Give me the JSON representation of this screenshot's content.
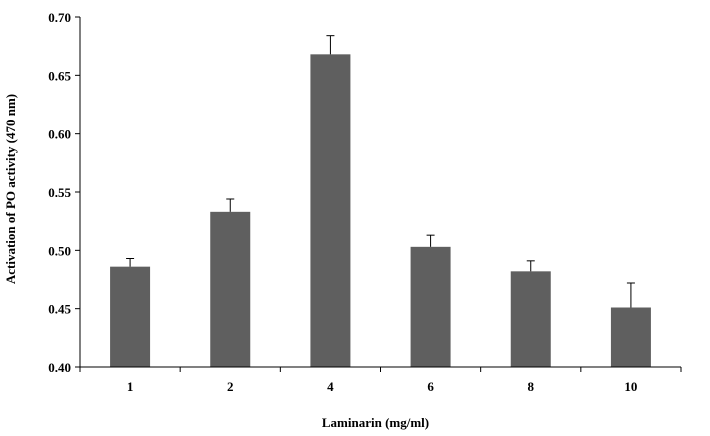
{
  "chart_data": {
    "type": "bar",
    "categories": [
      "1",
      "2",
      "4",
      "6",
      "8",
      "10"
    ],
    "values": [
      0.486,
      0.533,
      0.668,
      0.503,
      0.482,
      0.451
    ],
    "error_plus": [
      0.007,
      0.011,
      0.016,
      0.01,
      0.009,
      0.021
    ],
    "title": "",
    "xlabel": "Laminarin (mg/ml)",
    "ylabel": "Activation of PO activity (470 nm)",
    "ylim": [
      0.4,
      0.7
    ],
    "yticks": [
      "0.40",
      "0.45",
      "0.50",
      "0.55",
      "0.60",
      "0.65",
      "0.70"
    ],
    "grid": false,
    "legend": "none",
    "colors": {
      "bar": "#5f5f5f",
      "axis": "#000000"
    }
  }
}
